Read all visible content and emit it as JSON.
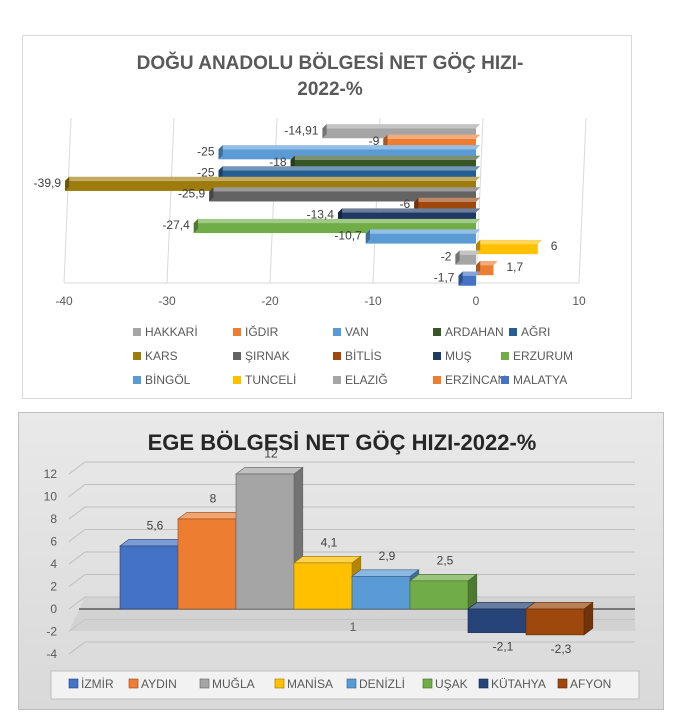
{
  "chart_data": [
    {
      "type": "bar",
      "orientation": "horizontal",
      "title": "DOĞU ANADOLU BÖLGESİ NET GÖÇ HIZI-2022-%",
      "title_lines": [
        "DOĞU ANADOLU BÖLGESİ NET GÖÇ HIZI-",
        "2022-%"
      ],
      "xlabel": "",
      "ylabel": "",
      "xlim": [
        -40,
        10
      ],
      "xticks": [
        "-40",
        "-30",
        "-20",
        "-10",
        "0",
        "10"
      ],
      "grid": true,
      "legend_position": "bottom",
      "series": [
        {
          "name": "HAKKARİ",
          "value": -14.91,
          "label": "-14,91",
          "color": "#a5a5a5"
        },
        {
          "name": "IĞDIR",
          "value": -9,
          "label": "-9",
          "color": "#ed7d31"
        },
        {
          "name": "VAN",
          "value": -25,
          "label": "-25",
          "color": "#5b9bd5"
        },
        {
          "name": "ARDAHAN",
          "value": -18,
          "label": "-18",
          "color": "#375623"
        },
        {
          "name": "AĞRI",
          "value": -25,
          "label": "-25",
          "color": "#255e91"
        },
        {
          "name": "KARS",
          "value": -39.9,
          "label": "-39,9",
          "color": "#9e7c0c"
        },
        {
          "name": "ŞIRNAK",
          "value": -25.9,
          "label": "-25,9",
          "color": "#636363"
        },
        {
          "name": "BİTLİS",
          "value": -6,
          "label": "-6",
          "color": "#9e480e"
        },
        {
          "name": "MUŞ",
          "value": -13.4,
          "label": "-13,4",
          "color": "#1f3864"
        },
        {
          "name": "ERZURUM",
          "value": -27.4,
          "label": "-27,4",
          "color": "#70ad47"
        },
        {
          "name": "BİNGÖL",
          "value": -10.7,
          "label": "-10,7",
          "color": "#5b9bd5"
        },
        {
          "name": "TUNCELİ",
          "value": 6,
          "label": "6",
          "color": "#ffc000"
        },
        {
          "name": "ELAZIĞ",
          "value": -2,
          "label": "-2",
          "color": "#a5a5a5"
        },
        {
          "name": "ERZİNCAN",
          "value": 1.7,
          "label": "1,7",
          "color": "#ed7d31"
        },
        {
          "name": "MALATYA",
          "value": -1.7,
          "label": "-1,7",
          "color": "#4472c4"
        }
      ]
    },
    {
      "type": "bar",
      "orientation": "vertical",
      "title": "EGE BÖLGESİ NET GÖÇ HIZI-2022-%",
      "xlabel": "",
      "ylabel": "",
      "ylim": [
        -4,
        12
      ],
      "yticks": [
        "12",
        "10",
        "8",
        "6",
        "4",
        "2",
        "0",
        "-2",
        "-4"
      ],
      "category_label": "1",
      "grid": true,
      "legend_position": "bottom",
      "series": [
        {
          "name": "İZMİR",
          "value": 5.6,
          "label": "5,6",
          "color": "#4472c4"
        },
        {
          "name": "AYDIN",
          "value": 8,
          "label": "8",
          "color": "#ed7d31"
        },
        {
          "name": "MUĞLA",
          "value": 12,
          "label": "12",
          "color": "#a5a5a5"
        },
        {
          "name": "MANİSA",
          "value": 4.1,
          "label": "4,1",
          "color": "#ffc000"
        },
        {
          "name": "DENİZLİ",
          "value": 2.9,
          "label": "2,9",
          "color": "#5b9bd5"
        },
        {
          "name": "UŞAK",
          "value": 2.5,
          "label": "2,5",
          "color": "#70ad47"
        },
        {
          "name": "KÜTAHYA",
          "value": -2.1,
          "label": "-2,1",
          "color": "#264478"
        },
        {
          "name": "AFYON",
          "value": -2.3,
          "label": "-2,3",
          "color": "#9e480e"
        }
      ]
    }
  ]
}
